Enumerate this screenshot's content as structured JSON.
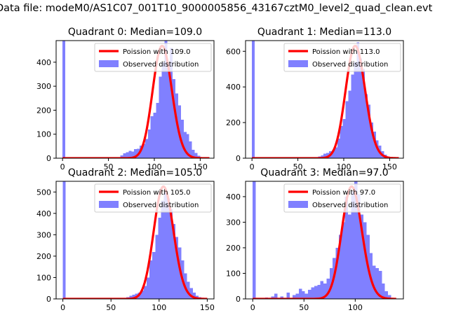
{
  "figure_title": "Data file: modeM0/AS1C07_001T10_9000005856_43167cztM0_level2_quad_clean.evt",
  "colors": {
    "histogram": "#8080ff",
    "poisson": "#ff0000"
  },
  "chart_data": [
    {
      "type": "bar",
      "title": "Quadrant 0: Median=109.0",
      "median": 109.0,
      "xlim": [
        -7,
        165
      ],
      "ylim": [
        0,
        490
      ],
      "xticks": [
        0,
        50,
        100,
        150
      ],
      "yticks": [
        0,
        100,
        200,
        300,
        400
      ],
      "legend": {
        "position": "top-right",
        "line_label": "Poission with 109.0",
        "bar_label": "Observed distribution"
      },
      "series": [
        {
          "name": "Observed distribution",
          "kind": "histogram",
          "bin_width": 3,
          "bins": [
            [
              0,
              490
            ],
            [
              51,
              2
            ],
            [
              63,
              12
            ],
            [
              66,
              20
            ],
            [
              69,
              25
            ],
            [
              72,
              30
            ],
            [
              75,
              28
            ],
            [
              78,
              38
            ],
            [
              81,
              40
            ],
            [
              84,
              52
            ],
            [
              87,
              60
            ],
            [
              90,
              80
            ],
            [
              93,
              120
            ],
            [
              96,
              175
            ],
            [
              99,
              190
            ],
            [
              102,
              230
            ],
            [
              105,
              340
            ],
            [
              108,
              400
            ],
            [
              111,
              490
            ],
            [
              114,
              400
            ],
            [
              117,
              460
            ],
            [
              120,
              330
            ],
            [
              123,
              270
            ],
            [
              126,
              220
            ],
            [
              129,
              160
            ],
            [
              132,
              110
            ],
            [
              135,
              100
            ],
            [
              138,
              70
            ],
            [
              141,
              35
            ],
            [
              144,
              22
            ],
            [
              147,
              10
            ],
            [
              150,
              5
            ],
            [
              153,
              2
            ]
          ]
        },
        {
          "name": "Poission with 109.0",
          "kind": "poisson_curve",
          "mean": 109.0,
          "x_range": [
            0,
            160
          ]
        }
      ]
    },
    {
      "type": "bar",
      "title": "Quadrant 1: Median=113.0",
      "median": 113.0,
      "xlim": [
        -7,
        165
      ],
      "ylim": [
        0,
        660
      ],
      "xticks": [
        0,
        50,
        100,
        150
      ],
      "yticks": [
        0,
        200,
        400,
        600
      ],
      "legend": {
        "position": "top-right",
        "line_label": "Poission with 113.0",
        "bar_label": "Observed distribution"
      },
      "series": [
        {
          "name": "Observed distribution",
          "kind": "histogram",
          "bin_width": 3,
          "bins": [
            [
              0,
              660
            ],
            [
              69,
              5
            ],
            [
              72,
              10
            ],
            [
              75,
              15
            ],
            [
              78,
              25
            ],
            [
              81,
              30
            ],
            [
              84,
              40
            ],
            [
              87,
              45
            ],
            [
              90,
              60
            ],
            [
              93,
              110
            ],
            [
              96,
              180
            ],
            [
              99,
              220
            ],
            [
              102,
              320
            ],
            [
              105,
              380
            ],
            [
              108,
              470
            ],
            [
              111,
              540
            ],
            [
              114,
              650
            ],
            [
              117,
              560
            ],
            [
              120,
              500
            ],
            [
              123,
              360
            ],
            [
              126,
              300
            ],
            [
              129,
              200
            ],
            [
              132,
              150
            ],
            [
              135,
              100
            ],
            [
              138,
              70
            ],
            [
              141,
              40
            ],
            [
              144,
              20
            ],
            [
              147,
              10
            ],
            [
              150,
              5
            ]
          ]
        },
        {
          "name": "Poission with 113.0",
          "kind": "poisson_curve",
          "mean": 113.0,
          "x_range": [
            0,
            160
          ]
        }
      ]
    },
    {
      "type": "bar",
      "title": "Quadrant 2: Median=105.0",
      "median": 105.0,
      "xlim": [
        -7,
        157
      ],
      "ylim": [
        0,
        550
      ],
      "xticks": [
        0,
        50,
        100,
        150
      ],
      "yticks": [
        0,
        100,
        200,
        300,
        400,
        500
      ],
      "legend": {
        "position": "top-right",
        "line_label": "Poission with 105.0",
        "bar_label": "Observed distribution"
      },
      "series": [
        {
          "name": "Observed distribution",
          "kind": "histogram",
          "bin_width": 3,
          "bins": [
            [
              0,
              550
            ],
            [
              63,
              5
            ],
            [
              66,
              8
            ],
            [
              69,
              15
            ],
            [
              72,
              20
            ],
            [
              75,
              25
            ],
            [
              78,
              30
            ],
            [
              81,
              40
            ],
            [
              84,
              60
            ],
            [
              87,
              100
            ],
            [
              90,
              180
            ],
            [
              93,
              220
            ],
            [
              96,
              300
            ],
            [
              99,
              380
            ],
            [
              102,
              460
            ],
            [
              105,
              500
            ],
            [
              108,
              470
            ],
            [
              111,
              420
            ],
            [
              114,
              350
            ],
            [
              117,
              290
            ],
            [
              120,
              240
            ],
            [
              123,
              180
            ],
            [
              126,
              120
            ],
            [
              129,
              80
            ],
            [
              132,
              50
            ],
            [
              135,
              30
            ],
            [
              138,
              15
            ],
            [
              141,
              8
            ]
          ]
        },
        {
          "name": "Poission with 105.0",
          "kind": "poisson_curve",
          "mean": 105.0,
          "x_range": [
            0,
            150
          ]
        }
      ]
    },
    {
      "type": "bar",
      "title": "Quadrant 3: Median=97.0",
      "median": 97.0,
      "xlim": [
        -7,
        147
      ],
      "ylim": [
        0,
        460
      ],
      "xticks": [
        0,
        50,
        100
      ],
      "yticks": [
        0,
        100,
        200,
        300,
        400
      ],
      "legend": {
        "position": "top-right",
        "line_label": "Poission with 97.0",
        "bar_label": "Observed distribution"
      },
      "series": [
        {
          "name": "Observed distribution",
          "kind": "histogram",
          "bin_width": 3,
          "bins": [
            [
              0,
              460
            ],
            [
              12,
              5
            ],
            [
              18,
              10
            ],
            [
              21,
              20
            ],
            [
              27,
              10
            ],
            [
              33,
              25
            ],
            [
              39,
              15
            ],
            [
              42,
              20
            ],
            [
              45,
              40
            ],
            [
              48,
              30
            ],
            [
              51,
              20
            ],
            [
              54,
              35
            ],
            [
              57,
              45
            ],
            [
              60,
              50
            ],
            [
              63,
              55
            ],
            [
              66,
              70
            ],
            [
              69,
              60
            ],
            [
              72,
              80
            ],
            [
              75,
              120
            ],
            [
              78,
              160
            ],
            [
              81,
              200
            ],
            [
              84,
              250
            ],
            [
              87,
              300
            ],
            [
              90,
              400
            ],
            [
              93,
              330
            ],
            [
              96,
              420
            ],
            [
              99,
              460
            ],
            [
              102,
              410
            ],
            [
              105,
              330
            ],
            [
              108,
              300
            ],
            [
              111,
              250
            ],
            [
              114,
              180
            ],
            [
              117,
              130
            ],
            [
              120,
              120
            ],
            [
              123,
              110
            ],
            [
              126,
              60
            ],
            [
              129,
              30
            ],
            [
              132,
              15
            ]
          ]
        },
        {
          "name": "Poission with 97.0",
          "kind": "poisson_curve",
          "mean": 97.0,
          "x_range": [
            0,
            140
          ]
        }
      ]
    }
  ]
}
